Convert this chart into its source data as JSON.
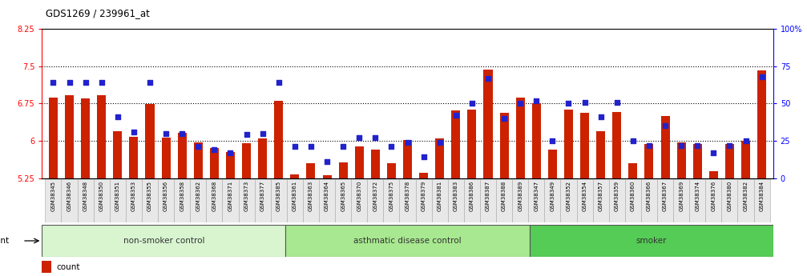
{
  "title": "GDS1269 / 239961_at",
  "ylim_left": [
    5.25,
    8.25
  ],
  "ylim_right": [
    0,
    100
  ],
  "yticks_left": [
    5.25,
    6.0,
    6.75,
    7.5,
    8.25
  ],
  "ytick_labels_left": [
    "5.25",
    "6",
    "6.75",
    "7.5",
    "8.25"
  ],
  "yticks_right": [
    0,
    25,
    50,
    75,
    100
  ],
  "ytick_labels_right": [
    "0",
    "25",
    "50",
    "75",
    "100%"
  ],
  "bar_color": "#cc2200",
  "dot_color": "#2222cc",
  "samples": [
    "GSM38345",
    "GSM38346",
    "GSM38348",
    "GSM38350",
    "GSM38351",
    "GSM38353",
    "GSM38355",
    "GSM38356",
    "GSM38358",
    "GSM38362",
    "GSM38368",
    "GSM38371",
    "GSM38373",
    "GSM38377",
    "GSM38385",
    "GSM38361",
    "GSM38363",
    "GSM38364",
    "GSM38365",
    "GSM38370",
    "GSM38372",
    "GSM38375",
    "GSM38378",
    "GSM38379",
    "GSM38381",
    "GSM38383",
    "GSM38386",
    "GSM38387",
    "GSM38388",
    "GSM38389",
    "GSM38347",
    "GSM38349",
    "GSM38352",
    "GSM38354",
    "GSM38357",
    "GSM38359",
    "GSM38360",
    "GSM38366",
    "GSM38367",
    "GSM38369",
    "GSM38374",
    "GSM38376",
    "GSM38380",
    "GSM38382",
    "GSM38384"
  ],
  "bar_values": [
    6.87,
    6.92,
    6.86,
    6.91,
    6.2,
    6.08,
    6.74,
    6.06,
    6.16,
    5.97,
    5.86,
    5.77,
    5.95,
    6.05,
    6.8,
    5.33,
    5.55,
    5.3,
    5.57,
    5.88,
    5.82,
    5.55,
    6.01,
    5.35,
    6.04,
    6.61,
    6.63,
    7.43,
    6.56,
    6.87,
    6.75,
    5.82,
    6.62,
    6.56,
    6.2,
    6.58,
    5.55,
    5.93,
    6.5,
    5.97,
    5.93,
    5.38,
    5.93,
    6.0,
    7.42
  ],
  "pct_values": [
    64,
    64,
    64,
    64,
    41,
    31,
    64,
    30,
    30,
    21,
    19,
    17,
    29,
    30,
    64,
    21,
    21,
    11,
    21,
    27,
    27,
    21,
    24,
    14,
    24,
    42,
    50,
    67,
    40,
    50,
    52,
    25,
    50,
    51,
    41,
    51,
    25,
    22,
    35,
    22,
    22,
    17,
    22,
    25,
    68
  ],
  "groups": [
    {
      "label": "non-smoker control",
      "color": "#d8f5d0",
      "start": 0,
      "end": 15
    },
    {
      "label": "asthmatic disease control",
      "color": "#a8e890",
      "start": 15,
      "end": 30
    },
    {
      "label": "smoker",
      "color": "#55cc55",
      "start": 30,
      "end": 45
    }
  ]
}
